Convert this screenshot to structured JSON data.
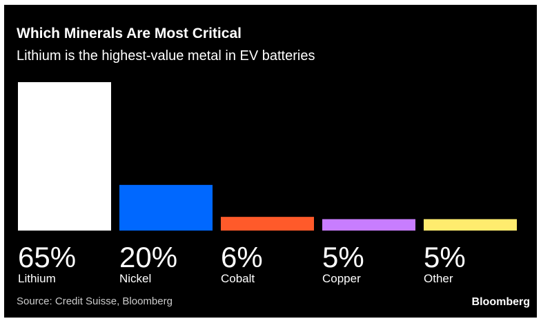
{
  "header": {
    "title": "Which Minerals Are Most Critical",
    "subtitle": "Lithium is the highest-value metal in EV batteries"
  },
  "footer": {
    "source": "Source: Credit Suisse, Bloomberg",
    "brand": "Bloomberg"
  },
  "chart_data": {
    "type": "bar",
    "title": "Which Minerals Are Most Critical",
    "subtitle": "Lithium is the highest-value metal in EV batteries",
    "categories": [
      "Lithium",
      "Nickel",
      "Cobalt",
      "Copper",
      "Other"
    ],
    "values": [
      65,
      20,
      6,
      5,
      5
    ],
    "data_labels": [
      "65%",
      "20%",
      "6%",
      "5%",
      "5%"
    ],
    "colors": [
      "#ffffff",
      "#0068ff",
      "#ff5a2a",
      "#c87dff",
      "#ffec6e"
    ],
    "ylim": [
      0,
      65
    ],
    "grid": false,
    "legend": "none",
    "background": "#000000"
  }
}
